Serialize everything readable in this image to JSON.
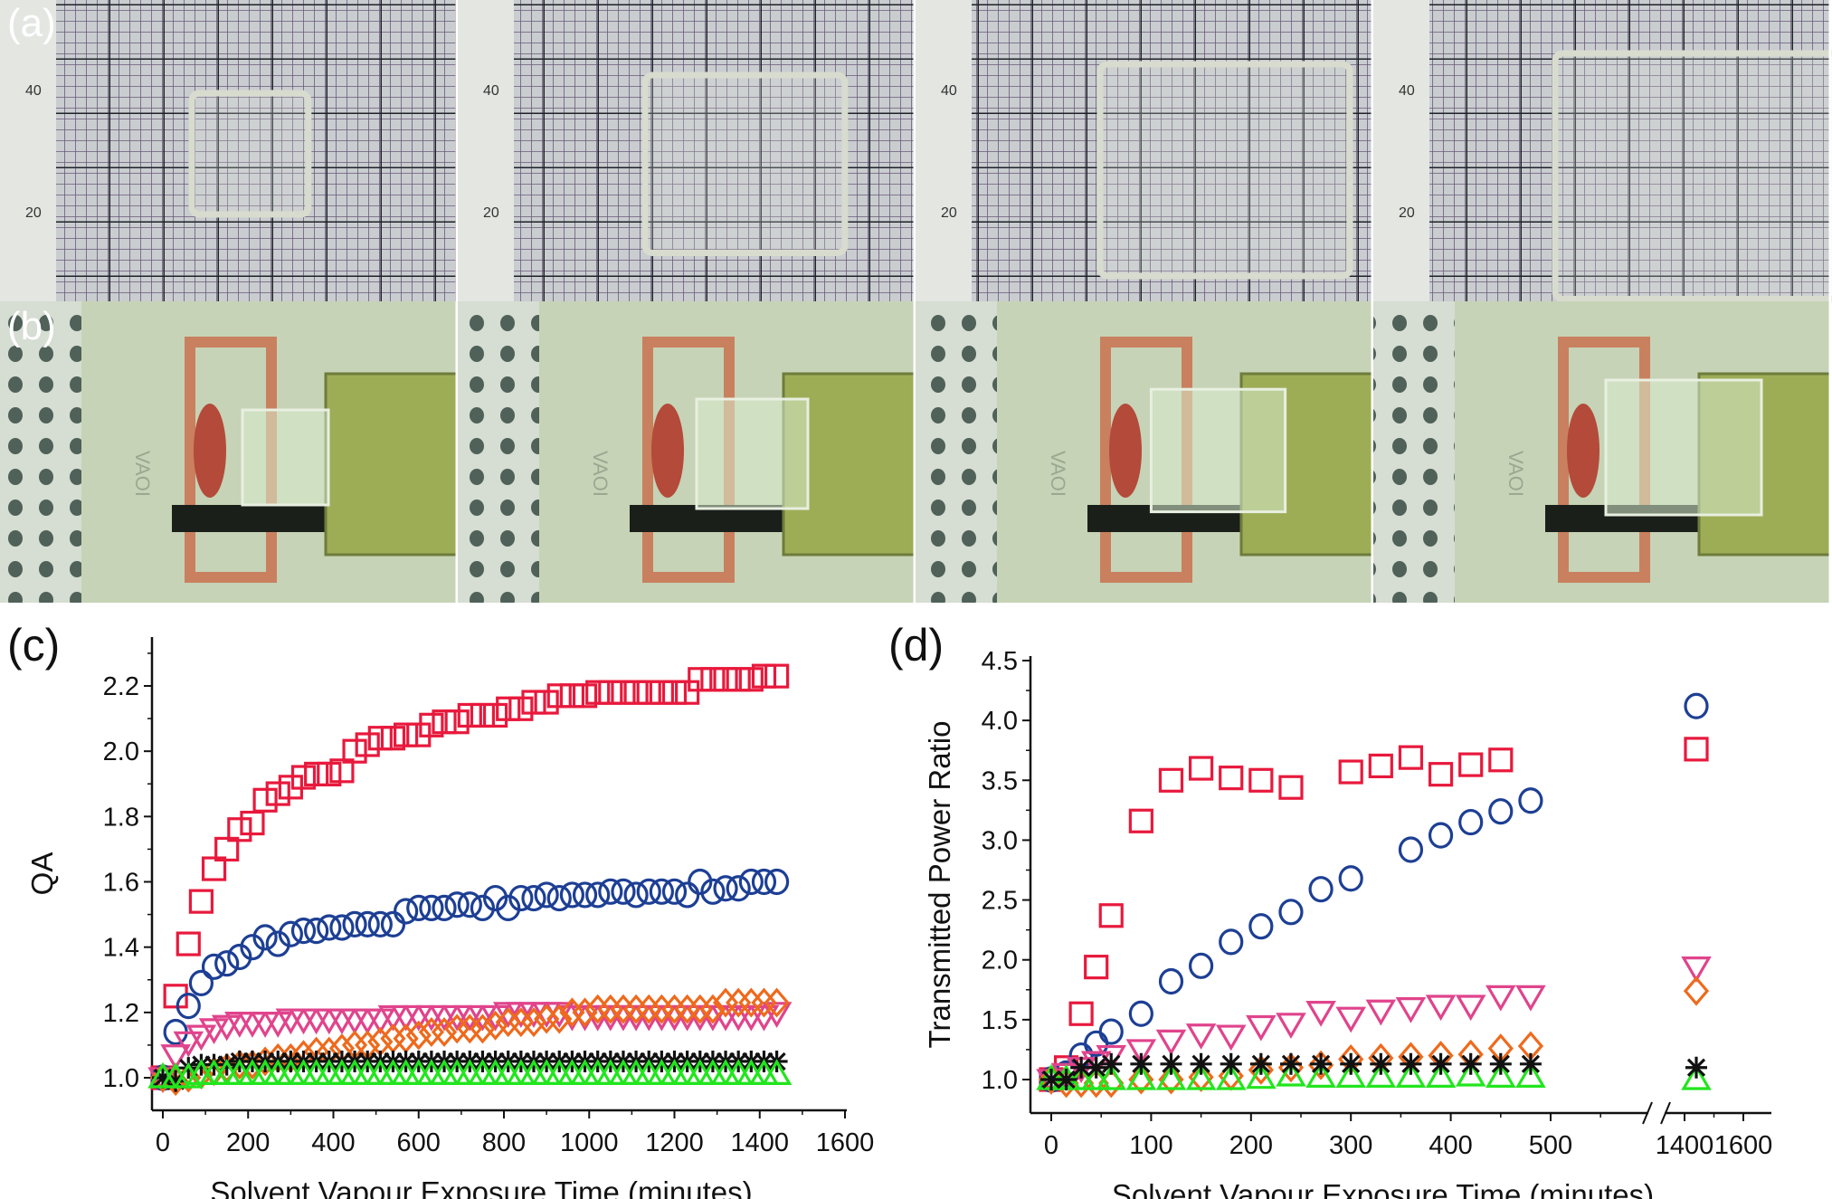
{
  "panel_labels": {
    "a": "(a)",
    "b": "(b)",
    "c": "(c)",
    "d": "(d)"
  },
  "photos_a": {
    "scale_labels": [
      "40",
      "20"
    ],
    "square_growth": [
      0.0,
      0.25,
      0.4,
      0.55
    ]
  },
  "photos_b": {
    "board_text": "VAOI",
    "film_growth": [
      0.0,
      0.2,
      0.38,
      0.55
    ]
  },
  "colors": {
    "red": "#e8193c",
    "blue": "#1d3f94",
    "pink": "#e0448c",
    "orange": "#ee6a1c",
    "black": "#111111",
    "green": "#22e51e"
  },
  "chart_data": [
    {
      "type": "scatter",
      "panel": "(c)",
      "xlabel": "Solvent Vapour Exposure Time (minutes)",
      "ylabel": "QA",
      "xlim": [
        -50,
        1600
      ],
      "ylim": [
        0.9,
        2.3
      ],
      "xticks": [
        0,
        200,
        400,
        600,
        800,
        1000,
        1200,
        1400,
        1600
      ],
      "yticks": [
        1.0,
        1.2,
        1.4,
        1.6,
        1.8,
        2.0,
        2.2
      ],
      "grid": false,
      "x": [
        0,
        30,
        60,
        90,
        120,
        150,
        180,
        210,
        240,
        270,
        300,
        330,
        360,
        390,
        420,
        450,
        480,
        510,
        540,
        570,
        600,
        630,
        660,
        690,
        720,
        750,
        780,
        810,
        840,
        870,
        900,
        930,
        960,
        990,
        1020,
        1050,
        1080,
        1110,
        1140,
        1170,
        1200,
        1230,
        1260,
        1290,
        1320,
        1350,
        1380,
        1410,
        1440
      ],
      "series": [
        {
          "marker": "square",
          "color": "red",
          "values": [
            1.0,
            1.25,
            1.41,
            1.54,
            1.64,
            1.7,
            1.76,
            1.78,
            1.85,
            1.87,
            1.89,
            1.92,
            1.93,
            1.93,
            1.94,
            2.0,
            2.02,
            2.04,
            2.04,
            2.05,
            2.05,
            2.08,
            2.09,
            2.09,
            2.11,
            2.11,
            2.11,
            2.13,
            2.13,
            2.15,
            2.15,
            2.17,
            2.17,
            2.17,
            2.18,
            2.18,
            2.18,
            2.18,
            2.18,
            2.18,
            2.18,
            2.18,
            2.22,
            2.22,
            2.22,
            2.22,
            2.22,
            2.23,
            2.23
          ]
        },
        {
          "marker": "circle",
          "color": "blue",
          "values": [
            1.0,
            1.14,
            1.22,
            1.29,
            1.34,
            1.35,
            1.37,
            1.4,
            1.43,
            1.41,
            1.44,
            1.45,
            1.45,
            1.46,
            1.46,
            1.47,
            1.47,
            1.47,
            1.47,
            1.51,
            1.52,
            1.52,
            1.52,
            1.53,
            1.53,
            1.52,
            1.55,
            1.52,
            1.55,
            1.55,
            1.56,
            1.55,
            1.56,
            1.56,
            1.56,
            1.57,
            1.57,
            1.56,
            1.57,
            1.57,
            1.57,
            1.56,
            1.6,
            1.57,
            1.58,
            1.58,
            1.6,
            1.6,
            1.6
          ]
        },
        {
          "marker": "triangle-down",
          "color": "pink",
          "values": [
            1.0,
            1.07,
            1.11,
            1.13,
            1.15,
            1.16,
            1.17,
            1.17,
            1.17,
            1.17,
            1.18,
            1.18,
            1.18,
            1.18,
            1.18,
            1.18,
            1.18,
            1.18,
            1.19,
            1.19,
            1.19,
            1.19,
            1.19,
            1.19,
            1.19,
            1.19,
            1.19,
            1.2,
            1.2,
            1.2,
            1.2,
            1.2,
            1.19,
            1.19,
            1.19,
            1.19,
            1.19,
            1.19,
            1.19,
            1.19,
            1.19,
            1.19,
            1.19,
            1.19,
            1.19,
            1.19,
            1.19,
            1.19,
            1.2
          ]
        },
        {
          "marker": "diamond",
          "color": "orange",
          "values": [
            1.0,
            0.99,
            1.0,
            1.01,
            1.02,
            1.03,
            1.04,
            1.04,
            1.05,
            1.06,
            1.06,
            1.07,
            1.08,
            1.08,
            1.09,
            1.1,
            1.1,
            1.11,
            1.12,
            1.12,
            1.13,
            1.14,
            1.14,
            1.15,
            1.15,
            1.15,
            1.16,
            1.17,
            1.17,
            1.17,
            1.18,
            1.18,
            1.2,
            1.2,
            1.21,
            1.21,
            1.21,
            1.21,
            1.21,
            1.21,
            1.21,
            1.21,
            1.21,
            1.21,
            1.23,
            1.23,
            1.23,
            1.23,
            1.23
          ]
        },
        {
          "marker": "cross",
          "color": "black",
          "values": [
            1.0,
            0.99,
            1.03,
            1.04,
            1.04,
            1.04,
            1.05,
            1.05,
            1.05,
            1.05,
            1.05,
            1.05,
            1.05,
            1.05,
            1.05,
            1.05,
            1.05,
            1.05,
            1.05,
            1.05,
            1.05,
            1.05,
            1.05,
            1.05,
            1.05,
            1.05,
            1.05,
            1.05,
            1.05,
            1.05,
            1.05,
            1.05,
            1.05,
            1.05,
            1.05,
            1.05,
            1.05,
            1.05,
            1.05,
            1.05,
            1.05,
            1.05,
            1.05,
            1.05,
            1.05,
            1.05,
            1.05,
            1.05,
            1.05
          ]
        },
        {
          "marker": "triangle-up",
          "color": "green",
          "values": [
            1.0,
            1.0,
            1.0,
            1.01,
            1.01,
            1.01,
            1.01,
            1.01,
            1.01,
            1.01,
            1.01,
            1.01,
            1.01,
            1.01,
            1.01,
            1.01,
            1.01,
            1.01,
            1.01,
            1.01,
            1.01,
            1.01,
            1.01,
            1.01,
            1.01,
            1.01,
            1.01,
            1.01,
            1.01,
            1.01,
            1.01,
            1.01,
            1.01,
            1.01,
            1.01,
            1.01,
            1.01,
            1.01,
            1.01,
            1.01,
            1.01,
            1.01,
            1.01,
            1.01,
            1.01,
            1.01,
            1.01,
            1.01,
            1.01
          ]
        }
      ]
    },
    {
      "type": "scatter",
      "panel": "(d)",
      "xlabel": "Solvent Vapour Exposure Time (minutes)",
      "ylabel": "Transmitted Power Ratio",
      "xlim": [
        -20,
        1650
      ],
      "axis_break": [
        550,
        1350
      ],
      "ylim": [
        0.75,
        4.5
      ],
      "xticks": [
        0,
        100,
        200,
        300,
        400,
        500,
        1400,
        1600
      ],
      "yticks": [
        1.0,
        1.5,
        2.0,
        2.5,
        3.0,
        3.5,
        4.0,
        4.5
      ],
      "grid": false,
      "x": [
        0,
        15,
        30,
        45,
        60,
        90,
        120,
        150,
        180,
        210,
        240,
        270,
        300,
        330,
        360,
        390,
        420,
        450,
        480,
        1440
      ],
      "series": [
        {
          "marker": "square",
          "color": "red",
          "values": [
            1.0,
            1.1,
            1.55,
            1.94,
            2.37,
            3.16,
            3.5,
            3.6,
            3.52,
            3.5,
            3.44,
            null,
            3.57,
            3.62,
            3.69,
            3.55,
            3.63,
            3.67,
            null,
            3.76
          ]
        },
        {
          "marker": "circle",
          "color": "blue",
          "values": [
            1.0,
            1.05,
            1.2,
            1.3,
            1.4,
            1.55,
            1.82,
            1.95,
            2.15,
            2.28,
            2.4,
            2.59,
            2.68,
            null,
            2.92,
            3.04,
            3.15,
            3.24,
            3.33,
            4.12
          ]
        },
        {
          "marker": "triangle-down",
          "color": "pink",
          "values": [
            1.0,
            1.05,
            1.1,
            1.15,
            1.2,
            1.25,
            1.33,
            1.38,
            1.37,
            1.45,
            1.47,
            1.57,
            1.52,
            1.58,
            1.6,
            1.62,
            1.62,
            1.7,
            1.7,
            1.94
          ]
        },
        {
          "marker": "diamond",
          "color": "orange",
          "values": [
            1.0,
            0.97,
            0.97,
            0.97,
            0.97,
            1.0,
            1.0,
            1.02,
            1.03,
            1.08,
            1.1,
            1.12,
            1.17,
            1.18,
            1.19,
            1.2,
            1.21,
            1.26,
            1.28,
            1.74
          ]
        },
        {
          "marker": "triangle-up",
          "color": "green",
          "values": [
            1.0,
            1.0,
            1.0,
            1.0,
            1.0,
            1.0,
            1.0,
            1.0,
            1.0,
            1.01,
            1.03,
            1.02,
            1.02,
            1.02,
            1.02,
            1.02,
            1.03,
            1.02,
            1.02,
            1.0
          ]
        },
        {
          "marker": "cross",
          "color": "black",
          "values": [
            1.0,
            1.0,
            1.1,
            1.1,
            1.13,
            1.13,
            1.13,
            1.13,
            1.13,
            1.13,
            1.13,
            1.13,
            1.13,
            1.13,
            1.13,
            1.13,
            1.13,
            1.13,
            1.13,
            1.1
          ]
        }
      ]
    }
  ]
}
